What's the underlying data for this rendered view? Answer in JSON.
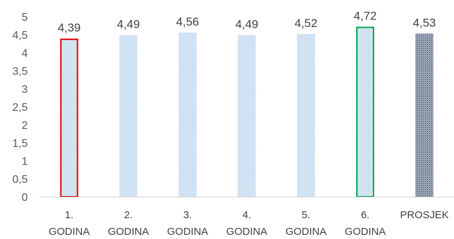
{
  "chart_data": {
    "type": "bar",
    "categories": [
      [
        "1.",
        "GODINA"
      ],
      [
        "2.",
        "GODINA"
      ],
      [
        "3.",
        "GODINA"
      ],
      [
        "4.",
        "GODINA"
      ],
      [
        "5.",
        "GODINA"
      ],
      [
        "6.",
        "GODINA"
      ],
      [
        "PROSJEK"
      ]
    ],
    "values": [
      4.39,
      4.49,
      4.56,
      4.49,
      4.52,
      4.72,
      4.53
    ],
    "data_labels": [
      "4,39",
      "4,49",
      "4,56",
      "4,49",
      "4,52",
      "4,72",
      "4,53"
    ],
    "y_ticks": [
      0,
      0.5,
      1,
      1.5,
      2,
      2.5,
      3,
      3.5,
      4,
      4.5,
      5
    ],
    "y_tick_labels": [
      "0",
      "0,5",
      "1",
      "1,5",
      "2",
      "2,5",
      "3",
      "3,5",
      "4",
      "4,5",
      "5"
    ],
    "ylim": [
      0,
      5
    ],
    "grid": false,
    "legend": "none",
    "title": "",
    "xlabel": "",
    "ylabel": "",
    "bar_styles": [
      {
        "fill": "light-dotted",
        "outline": "#e00000"
      },
      {
        "fill": "light-dotted",
        "outline": "none"
      },
      {
        "fill": "light-dotted",
        "outline": "none"
      },
      {
        "fill": "light-dotted",
        "outline": "none"
      },
      {
        "fill": "light-dotted",
        "outline": "none"
      },
      {
        "fill": "light-dotted",
        "outline": "#00a550"
      },
      {
        "fill": "dark-dotted",
        "outline": "none"
      }
    ],
    "colors": {
      "light_pattern": "#9dc3e6",
      "dark_pattern": "#44546a",
      "axis": "#d9d9d9"
    }
  }
}
